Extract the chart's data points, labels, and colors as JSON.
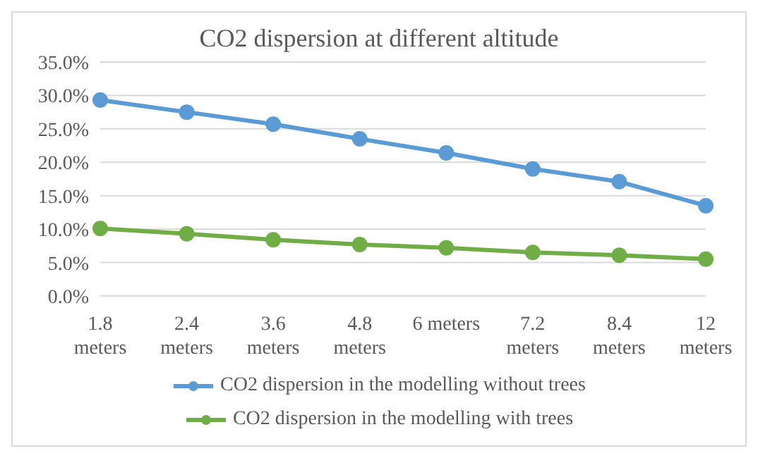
{
  "chart_data": {
    "type": "line",
    "title": "CO2 dispersion at different altitude",
    "categories": [
      "1.8 meters",
      "2.4 meters",
      "3.6 meters",
      "4.8 meters",
      "6 meters",
      "7.2 meters",
      "8.4 meters",
      "12 meters"
    ],
    "series": [
      {
        "name": "CO2 dispersion in the modelling without trees",
        "color": "#5b9bd5",
        "values": [
          29.3,
          27.5,
          25.7,
          23.5,
          21.4,
          19.0,
          17.1,
          13.5
        ]
      },
      {
        "name": "CO2 dispersion in the modelling with trees",
        "color": "#70ad47",
        "values": [
          10.1,
          9.3,
          8.4,
          7.7,
          7.2,
          6.5,
          6.1,
          5.5
        ]
      }
    ],
    "ylim": [
      0,
      35
    ],
    "yticks": [
      {
        "value": 0,
        "label": "0.0%"
      },
      {
        "value": 5,
        "label": "5.0%"
      },
      {
        "value": 10,
        "label": "10.0%"
      },
      {
        "value": 15,
        "label": "15.0%"
      },
      {
        "value": 20,
        "label": "20.0%"
      },
      {
        "value": 25,
        "label": "25.0%"
      },
      {
        "value": 30,
        "label": "30.0%"
      },
      {
        "value": 35,
        "label": "35.0%"
      }
    ],
    "grid": "y",
    "legend": "bottom",
    "marker": "circle",
    "line_style": "solid"
  }
}
